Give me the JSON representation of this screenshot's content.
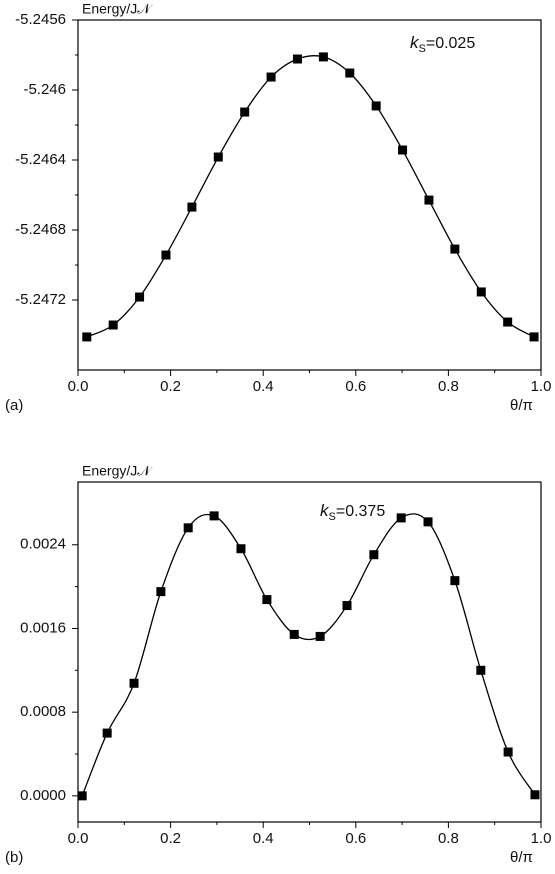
{
  "chart_data": [
    {
      "type": "line",
      "panel_label": "(a)",
      "y_label": "Energy/J𝒩",
      "x_label": "θ/π",
      "annotation": {
        "symbol": "k",
        "subscript": "S",
        "text": "=0.025"
      },
      "x": [
        0.019,
        0.076,
        0.133,
        0.19,
        0.246,
        0.303,
        0.36,
        0.417,
        0.474,
        0.53,
        0.587,
        0.644,
        0.701,
        0.758,
        0.814,
        0.871,
        0.928,
        0.985
      ],
      "series": [
        {
          "color": "#000000",
          "values": [
            -5.247411,
            -5.247343,
            -5.247183,
            -5.246943,
            -5.246669,
            -5.246383,
            -5.246126,
            -5.245926,
            -5.245823,
            -5.245811,
            -5.245903,
            -5.246091,
            -5.246343,
            -5.246629,
            -5.246909,
            -5.247154,
            -5.247326,
            -5.247411
          ]
        }
      ],
      "xlim": [
        0,
        1
      ],
      "xticks": [
        {
          "value": 0,
          "label": "0.0"
        },
        0.2,
        0.4,
        0.6,
        0.8,
        {
          "value": 1,
          "label": "1.0"
        }
      ],
      "ylim": [
        -5.2476,
        -5.2456
      ],
      "yticks": [
        -5.2456,
        -5.246,
        -5.2464,
        -5.2468,
        -5.2472
      ]
    },
    {
      "type": "line",
      "panel_label": "(b)",
      "y_label": "Energy/J𝒩",
      "x_label": "θ/π",
      "annotation": {
        "symbol": "k",
        "subscript": "S",
        "text": "=0.375"
      },
      "x": [
        0.009,
        0.063,
        0.121,
        0.179,
        0.238,
        0.294,
        0.352,
        0.408,
        0.467,
        0.523,
        0.581,
        0.639,
        0.698,
        0.756,
        0.814,
        0.87,
        0.929,
        0.987
      ],
      "series": [
        {
          "color": "#000000",
          "values": [
            0,
            0.0006,
            0.001076,
            0.001952,
            0.002562,
            0.002676,
            0.002362,
            0.001876,
            0.001543,
            0.001524,
            0.001819,
            0.002305,
            0.002657,
            0.002619,
            0.002057,
            0.0012,
            0.000419,
            1e-05
          ]
        }
      ],
      "xlim": [
        0,
        1
      ],
      "xticks": [
        {
          "value": 0,
          "label": "0.0"
        },
        0.2,
        0.4,
        0.6,
        0.8,
        {
          "value": 1,
          "label": "1.0"
        }
      ],
      "ylim": [
        -0.00025,
        0.003
      ],
      "yticks": [
        {
          "value": 0,
          "label": "0.0000"
        },
        0.0008,
        0.0016,
        0.0024
      ]
    }
  ]
}
